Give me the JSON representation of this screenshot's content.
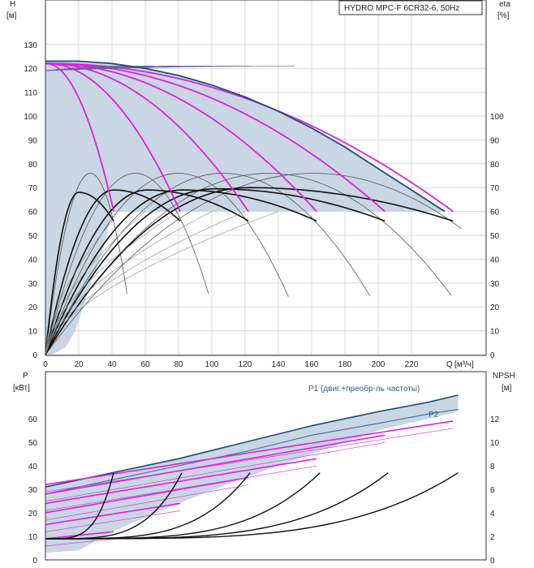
{
  "model_label": "HYDRO MPC-F 6CR32-6, 50Hz",
  "colors": {
    "band": "#c9d6e3",
    "speed_curve": "#e020e0",
    "qh_max": "#1f4e7a",
    "eff": "#111111",
    "eff_thin": "#555555",
    "npsh": "#111111",
    "grid": "#d9d9d9",
    "axis": "#333333"
  },
  "chart_data": [
    {
      "type": "line",
      "title": "HYDRO MPC-F 6CR32-6, 50Hz",
      "y_label": "H",
      "y_unit": "[м]",
      "y2_label": "eta",
      "y2_unit": "[%]",
      "x_label": "Q",
      "x_unit": "[м³/ч]",
      "xlim": [
        0,
        245
      ],
      "ylim": [
        0,
        140
      ],
      "y2lim": [
        0,
        140
      ],
      "x_ticks": [
        "0",
        "20",
        "40",
        "60",
        "80",
        "100",
        "120",
        "140",
        "160",
        "180",
        "200",
        "220"
      ],
      "y_ticks": [
        "0",
        "10",
        "20",
        "30",
        "40",
        "50",
        "60",
        "70",
        "80",
        "90",
        "100",
        "110",
        "120",
        "130"
      ],
      "y2_ticks": [
        "0",
        "10",
        "20",
        "30",
        "40",
        "50",
        "60",
        "70",
        "80",
        "90",
        "100"
      ],
      "grid": true,
      "operating_band": {
        "h_min": 60,
        "h_max_at_q0": 123
      },
      "qh_speed_curves": [
        {
          "pumps": 1,
          "q_end": 41,
          "h_end": 60
        },
        {
          "pumps": 2,
          "q_end": 81,
          "h_end": 60
        },
        {
          "pumps": 3,
          "q_end": 122,
          "h_end": 60
        },
        {
          "pumps": 4,
          "q_end": 163,
          "h_end": 60
        },
        {
          "pumps": 5,
          "q_end": 204,
          "h_end": 60
        },
        {
          "pumps": 6,
          "q_end": 245,
          "h_end": 60
        }
      ],
      "qh_max_curve": [
        [
          0,
          123
        ],
        [
          20,
          123
        ],
        [
          40,
          122
        ],
        [
          60,
          120
        ],
        [
          80,
          117
        ],
        [
          100,
          113
        ],
        [
          120,
          108
        ],
        [
          140,
          102
        ],
        [
          160,
          95
        ],
        [
          180,
          87
        ],
        [
          200,
          78
        ],
        [
          220,
          69
        ],
        [
          240,
          60
        ]
      ],
      "eff_thick": [
        {
          "q_start": 0,
          "peak_q": 20,
          "peak": 68,
          "q_end": 41,
          "end": 56
        },
        {
          "q_start": 0,
          "peak_q": 41,
          "peak": 69,
          "q_end": 81,
          "end": 56
        },
        {
          "q_start": 0,
          "peak_q": 61,
          "peak": 69,
          "q_end": 122,
          "end": 56
        },
        {
          "q_start": 0,
          "peak_q": 82,
          "peak": 69,
          "q_end": 163,
          "end": 56
        },
        {
          "q_start": 0,
          "peak_q": 102,
          "peak": 69.5,
          "q_end": 204,
          "end": 56
        },
        {
          "q_start": 0,
          "peak_q": 122,
          "peak": 70,
          "q_end": 245,
          "end": 56
        }
      ],
      "eff_thin": [
        {
          "peak_q": 27,
          "peak": 76,
          "q_end": 49
        },
        {
          "peak_q": 54,
          "peak": 76,
          "q_end": 98
        },
        {
          "peak_q": 80,
          "peak": 76,
          "q_end": 146
        },
        {
          "peak_q": 107,
          "peak": 76,
          "q_end": 195
        },
        {
          "peak_q": 134,
          "peak": 76,
          "q_end": 244
        },
        {
          "peak_q": 161,
          "peak": 76,
          "q_end": 293
        }
      ]
    },
    {
      "type": "line",
      "y_label": "P",
      "y_unit": "[кВт]",
      "y2_label": "NPSH",
      "y2_unit": "[м]",
      "xlim": [
        0,
        245
      ],
      "ylim": [
        0,
        70
      ],
      "y2lim": [
        0,
        14
      ],
      "y_ticks": [
        "0",
        "10",
        "20",
        "30",
        "40",
        "50",
        "60"
      ],
      "y2_ticks": [
        "0",
        "2",
        "4",
        "6",
        "8",
        "10",
        "12"
      ],
      "grid": false,
      "series": [
        {
          "name": "P1 (двиг.+преобр-ль частоты)",
          "values_q_p": [
            [
              0,
              31
            ],
            [
              40,
              37
            ],
            [
              80,
              43
            ],
            [
              120,
              50
            ],
            [
              160,
              57
            ],
            [
              200,
              63
            ],
            [
              230,
              67
            ],
            [
              248,
              70
            ]
          ]
        },
        {
          "name": "P2",
          "values_q_p": [
            [
              0,
              28
            ],
            [
              40,
              34
            ],
            [
              80,
              40
            ],
            [
              120,
              46
            ],
            [
              160,
              53
            ],
            [
              200,
              58
            ],
            [
              230,
              62
            ],
            [
              248,
              64
            ]
          ]
        }
      ],
      "p_speed_curves": [
        {
          "pumps": 1,
          "p_start": 9,
          "p_end": 12,
          "q_end": 41
        },
        {
          "pumps": 2,
          "p_start": 15,
          "p_end": 24,
          "q_end": 81
        },
        {
          "pumps": 3,
          "p_start": 20,
          "p_end": 35,
          "q_end": 122
        },
        {
          "pumps": 4,
          "p_start": 24,
          "p_end": 43,
          "q_end": 163
        },
        {
          "pumps": 5,
          "p_start": 28,
          "p_end": 53,
          "q_end": 204
        },
        {
          "pumps": 6,
          "p_start": 32,
          "p_end": 59,
          "q_end": 245
        }
      ],
      "npsh_curves": [
        {
          "pumps": 1,
          "q_end": 41
        },
        {
          "pumps": 2,
          "q_end": 82
        },
        {
          "pumps": 3,
          "q_end": 123
        },
        {
          "pumps": 4,
          "q_end": 165
        },
        {
          "pumps": 5,
          "q_end": 206
        },
        {
          "pumps": 6,
          "q_end": 248
        }
      ],
      "npsh_base": 1.8,
      "npsh_max": 7.4
    }
  ]
}
